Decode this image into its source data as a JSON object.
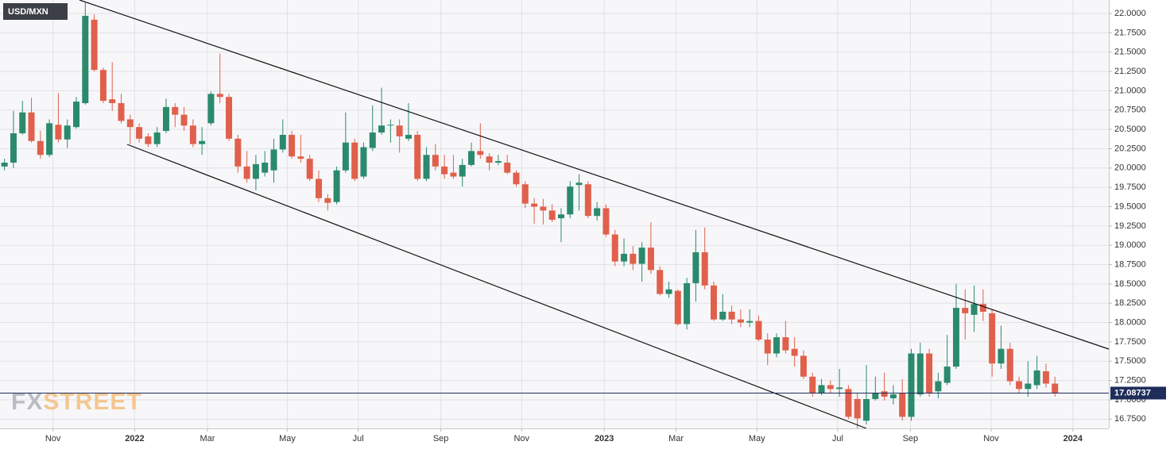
{
  "chart_data": {
    "type": "candlestick",
    "title": "USD/MXN",
    "watermark": [
      "FX",
      "STREET"
    ],
    "up_color": "#2b8a6c",
    "down_color": "#e0604c",
    "grid": true,
    "last_price": 17.08737,
    "ylim": [
      16.63,
      22.175
    ],
    "yticks": [
      {
        "value": 16.75,
        "label": "16.7500"
      },
      {
        "value": 17,
        "label": "17.0000"
      },
      {
        "value": 17.25,
        "label": "17.2500"
      },
      {
        "value": 17.5,
        "label": "17.5000"
      },
      {
        "value": 17.75,
        "label": "17.7500"
      },
      {
        "value": 18,
        "label": "18.0000"
      },
      {
        "value": 18.25,
        "label": "18.2500"
      },
      {
        "value": 18.5,
        "label": "18.5000"
      },
      {
        "value": 18.75,
        "label": "18.7500"
      },
      {
        "value": 19,
        "label": "19.0000"
      },
      {
        "value": 19.25,
        "label": "19.2500"
      },
      {
        "value": 19.5,
        "label": "19.5000"
      },
      {
        "value": 19.75,
        "label": "19.7500"
      },
      {
        "value": 20,
        "label": "20.0000"
      },
      {
        "value": 20.25,
        "label": "20.2500"
      },
      {
        "value": 20.5,
        "label": "20.5000"
      },
      {
        "value": 20.75,
        "label": "20.7500"
      },
      {
        "value": 21,
        "label": "21.0000"
      },
      {
        "value": 21.25,
        "label": "21.2500"
      },
      {
        "value": 21.5,
        "label": "21.5000"
      },
      {
        "value": 21.75,
        "label": "21.7500"
      },
      {
        "value": 22,
        "label": "22.0000"
      }
    ],
    "xlim": [
      -0.5,
      123
    ],
    "xticks": [
      {
        "value": 5.4,
        "label": "Nov"
      },
      {
        "value": 14.5,
        "label": "2022"
      },
      {
        "value": 22.6,
        "label": "Mar"
      },
      {
        "value": 31.5,
        "label": "May"
      },
      {
        "value": 39.4,
        "label": "Jul"
      },
      {
        "value": 48.6,
        "label": "Sep"
      },
      {
        "value": 57.6,
        "label": "Nov"
      },
      {
        "value": 66.8,
        "label": "2023"
      },
      {
        "value": 74.8,
        "label": "Mar"
      },
      {
        "value": 83.8,
        "label": "May"
      },
      {
        "value": 92.8,
        "label": "Jul"
      },
      {
        "value": 100.9,
        "label": "Sep"
      },
      {
        "value": 109.9,
        "label": "Nov"
      },
      {
        "value": 119,
        "label": "2024"
      }
    ],
    "open": [
      20.02,
      20.07,
      20.45,
      20.72,
      20.35,
      20.17,
      20.56,
      20.37,
      20.53,
      20.84,
      21.92,
      21.27,
      20.89,
      20.84,
      20.63,
      20.53,
      20.41,
      20.31,
      20.48,
      20.79,
      20.69,
      20.55,
      20.31,
      20.58,
      20.96,
      20.92,
      20.38,
      20.02,
      19.86,
      19.94,
      19.97,
      20.24,
      20.43,
      20.15,
      20.12,
      19.86,
      19.61,
      19.56,
      19.97,
      20.33,
      19.89,
      20.26,
      20.46,
      20.55,
      20.55,
      20.38,
      20.43,
      19.86,
      20.17,
      20.02,
      19.94,
      19.89,
      20.04,
      20.22,
      20.15,
      20.07,
      20.07,
      19.94,
      19.79,
      19.54,
      19.5,
      19.45,
      19.35,
      19.4,
      19.78,
      19.79,
      19.38,
      19.48,
      19.14,
      18.79,
      18.89,
      18.76,
      18.97,
      18.68,
      18.37,
      18.41,
      17.98,
      18.51,
      18.91,
      18.48,
      18.04,
      18.14,
      18.04,
      18.0,
      18.02,
      17.78,
      17.6,
      17.81,
      17.66,
      17.57,
      17.3,
      17.09,
      17.19,
      17.14,
      17.14,
      17.01,
      16.73,
      17.01,
      17.11,
      17.02,
      17.09,
      16.78,
      17.07,
      17.6,
      17.11,
      17.22,
      17.43,
      18.19,
      18.1,
      18.24,
      18.12,
      17.47,
      17.66,
      17.24,
      17.14,
      17.19,
      17.37,
      17.21
    ],
    "high": [
      20.12,
      20.74,
      20.87,
      20.91,
      20.48,
      20.63,
      20.97,
      20.63,
      20.92,
      22.14,
      21.99,
      21.3,
      21.37,
      20.96,
      20.69,
      20.58,
      20.45,
      20.53,
      20.9,
      20.84,
      20.79,
      20.63,
      20.53,
      20.99,
      21.48,
      20.96,
      20.43,
      20.22,
      20.17,
      20.22,
      20.38,
      20.63,
      20.48,
      20.43,
      20.17,
      19.97,
      19.66,
      20.02,
      20.72,
      20.38,
      20.33,
      20.81,
      21.04,
      20.63,
      20.63,
      20.84,
      20.48,
      20.27,
      20.31,
      20.17,
      20.17,
      20.12,
      20.33,
      20.58,
      20.19,
      20.17,
      20.17,
      19.97,
      19.83,
      19.61,
      19.6,
      19.53,
      19.48,
      19.83,
      19.92,
      19.83,
      19.56,
      19.53,
      19.2,
      19.09,
      18.99,
      19.04,
      19.3,
      18.73,
      18.53,
      18.43,
      18.58,
      19.2,
      19.23,
      18.53,
      18.37,
      18.22,
      18.17,
      18.17,
      18.09,
      17.86,
      17.86,
      18.02,
      17.81,
      17.64,
      17.35,
      17.27,
      17.25,
      17.4,
      17.19,
      17.09,
      17.45,
      17.3,
      17.35,
      17.19,
      17.27,
      17.66,
      17.74,
      17.66,
      17.35,
      17.84,
      18.5,
      18.43,
      18.48,
      18.43,
      18.17,
      17.96,
      17.74,
      17.3,
      17.5,
      17.57,
      17.47,
      17.3
    ],
    "low": [
      19.97,
      20.0,
      20.43,
      20.33,
      20.12,
      20.14,
      20.33,
      20.26,
      20.51,
      20.82,
      21.25,
      20.84,
      20.74,
      20.58,
      20.31,
      20.33,
      20.27,
      20.27,
      20.45,
      20.53,
      20.48,
      20.27,
      20.17,
      20.55,
      20.84,
      20.35,
      19.94,
      19.81,
      19.71,
      19.89,
      19.81,
      20.2,
      20.12,
      20.07,
      19.83,
      19.56,
      19.45,
      19.53,
      19.94,
      19.83,
      19.86,
      20.22,
      20.43,
      20.33,
      20.2,
      20.35,
      19.83,
      19.83,
      19.97,
      19.86,
      19.86,
      19.76,
      20.02,
      20.12,
      19.97,
      20.04,
      19.92,
      19.76,
      19.48,
      19.28,
      19.27,
      19.3,
      19.04,
      19.35,
      19.45,
      19.35,
      19.32,
      19.11,
      18.73,
      18.73,
      18.68,
      18.53,
      18.63,
      18.35,
      18.32,
      17.96,
      17.91,
      18.27,
      18.43,
      18.02,
      18.02,
      17.98,
      17.94,
      17.94,
      17.76,
      17.45,
      17.55,
      17.6,
      17.43,
      17.27,
      17.04,
      17.06,
      17.09,
      17.04,
      16.75,
      16.63,
      16.68,
      16.99,
      16.99,
      16.94,
      16.73,
      16.73,
      17.04,
      17.04,
      17.02,
      17.19,
      17.4,
      17.78,
      17.88,
      18.02,
      17.3,
      17.4,
      17.19,
      17.09,
      17.04,
      17.14,
      17.16,
      17.04
    ],
    "close": [
      20.07,
      20.45,
      20.72,
      20.35,
      20.17,
      20.58,
      20.37,
      20.55,
      20.86,
      21.97,
      21.27,
      20.87,
      20.84,
      20.61,
      20.53,
      20.38,
      20.31,
      20.46,
      20.79,
      20.69,
      20.55,
      20.31,
      20.35,
      20.96,
      20.92,
      20.38,
      20.02,
      19.86,
      20.05,
      20.07,
      20.24,
      20.43,
      20.15,
      20.12,
      19.86,
      19.61,
      19.55,
      19.97,
      20.33,
      19.86,
      20.27,
      20.46,
      20.55,
      20.56,
      20.41,
      20.43,
      19.86,
      20.17,
      20.02,
      19.92,
      19.89,
      20.04,
      20.22,
      20.17,
      20.07,
      20.09,
      19.94,
      19.79,
      19.54,
      19.5,
      19.45,
      19.33,
      19.4,
      19.76,
      19.81,
      19.38,
      19.48,
      19.14,
      18.79,
      18.89,
      18.76,
      18.97,
      18.68,
      18.37,
      18.43,
      17.98,
      18.51,
      18.91,
      18.48,
      18.04,
      18.14,
      18.04,
      18.0,
      18.02,
      17.78,
      17.6,
      17.81,
      17.64,
      17.57,
      17.3,
      17.09,
      17.19,
      17.14,
      17.16,
      16.78,
      16.76,
      17.01,
      17.09,
      17.04,
      17.07,
      16.78,
      17.6,
      17.6,
      17.09,
      17.24,
      17.43,
      18.19,
      18.12,
      18.24,
      18.14,
      17.47,
      17.66,
      17.24,
      17.14,
      17.21,
      17.38,
      17.21,
      17.09
    ]
  }
}
